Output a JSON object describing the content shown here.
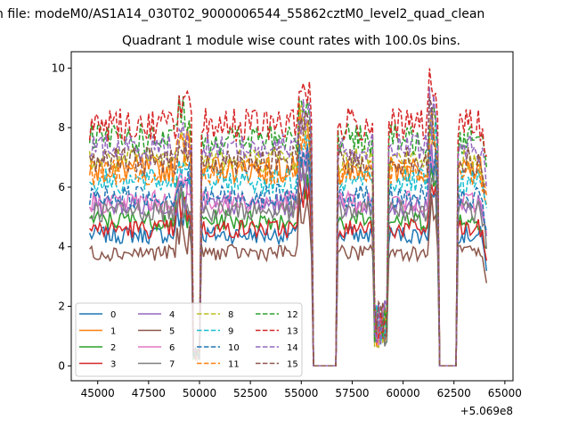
{
  "suptitle": "n file: modeM0/AS1A14_030T02_9000006544_55862cztM0_level2_quad_clean",
  "chart_data": {
    "type": "line",
    "title": "Quadrant 1 module wise count rates with 100.0s bins.",
    "xlabel": "",
    "ylabel": "",
    "offset_label": "+5.069e8",
    "xlim": [
      43700,
      65400
    ],
    "ylim": [
      -0.5,
      10.55
    ],
    "xticks": [
      45000,
      47500,
      50000,
      52500,
      55000,
      57500,
      60000,
      62500,
      65000
    ],
    "xtick_labels": [
      "45000",
      "47500",
      "50000",
      "52500",
      "55000",
      "57500",
      "60000",
      "62500",
      "65000"
    ],
    "yticks": [
      0,
      2,
      4,
      6,
      8,
      10
    ],
    "ytick_labels": [
      "0",
      "2",
      "4",
      "6",
      "8",
      "10"
    ],
    "grid": false,
    "legend_position": "lower-left",
    "legend_columns": 4,
    "dropouts": [
      [
        49700,
        50000
      ],
      [
        55600,
        56700
      ],
      [
        58600,
        59200
      ],
      [
        61800,
        62600
      ]
    ],
    "series": [
      {
        "name": "0",
        "color": "#1f77b4",
        "dash": "solid",
        "level": 4.4
      },
      {
        "name": "1",
        "color": "#ff7f0e",
        "dash": "solid",
        "level": 6.6
      },
      {
        "name": "2",
        "color": "#2ca02c",
        "dash": "solid",
        "level": 4.9
      },
      {
        "name": "3",
        "color": "#d62728",
        "dash": "solid",
        "level": 4.6
      },
      {
        "name": "4",
        "color": "#9467bd",
        "dash": "solid",
        "level": 5.4
      },
      {
        "name": "5",
        "color": "#8c564b",
        "dash": "solid",
        "level": 3.8
      },
      {
        "name": "6",
        "color": "#e377c2",
        "dash": "solid",
        "level": 5.5
      },
      {
        "name": "7",
        "color": "#7f7f7f",
        "dash": "solid",
        "level": 5.2
      },
      {
        "name": "8",
        "color": "#bcbd22",
        "dash": "dashed",
        "level": 6.9
      },
      {
        "name": "9",
        "color": "#17becf",
        "dash": "dashed",
        "level": 6.2
      },
      {
        "name": "10",
        "color": "#1f77b4",
        "dash": "dashed",
        "level": 5.7
      },
      {
        "name": "11",
        "color": "#ff7f0e",
        "dash": "dashed",
        "level": 6.5
      },
      {
        "name": "12",
        "color": "#2ca02c",
        "dash": "dashed",
        "level": 7.6
      },
      {
        "name": "13",
        "color": "#d62728",
        "dash": "dashed",
        "level": 8.1
      },
      {
        "name": "14",
        "color": "#9467bd",
        "dash": "dashed",
        "level": 7.3
      },
      {
        "name": "15",
        "color": "#8c564b",
        "dash": "dashed",
        "level": 6.9
      }
    ]
  }
}
